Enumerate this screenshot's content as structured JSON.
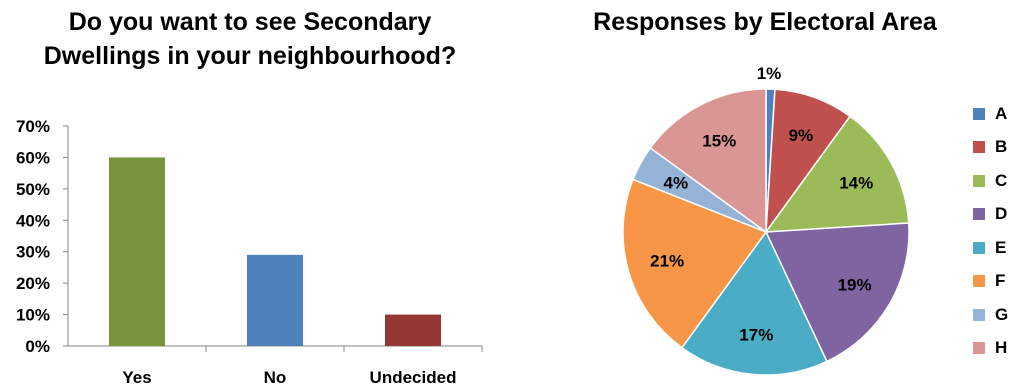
{
  "chart_data": [
    {
      "type": "bar",
      "title": "Do you want to see Secondary Dwellings in your neighbourhood?",
      "categories": [
        "Yes",
        "No",
        "Undecided"
      ],
      "values": [
        60,
        29,
        10
      ],
      "colors": [
        "#77933C",
        "#4F81BD",
        "#953735"
      ],
      "ylim": [
        0,
        70
      ],
      "yticks": [
        "0%",
        "10%",
        "20%",
        "30%",
        "40%",
        "50%",
        "60%",
        "70%"
      ],
      "xlabel": "",
      "ylabel": "",
      "grid": false
    },
    {
      "type": "pie",
      "title": "Responses by Electoral Area",
      "labels": [
        "A",
        "B",
        "C",
        "D",
        "E",
        "F",
        "G",
        "H"
      ],
      "values": [
        1,
        9,
        14,
        19,
        17,
        21,
        4,
        15
      ],
      "value_labels": [
        "1%",
        "9%",
        "14%",
        "19%",
        "17%",
        "21%",
        "4%",
        "15%"
      ],
      "colors": [
        "#4F81BD",
        "#C0504D",
        "#9BBB59",
        "#8064A2",
        "#4BACC6",
        "#F79646",
        "#95B3D7",
        "#D99694"
      ],
      "legend_position": "right"
    }
  ]
}
